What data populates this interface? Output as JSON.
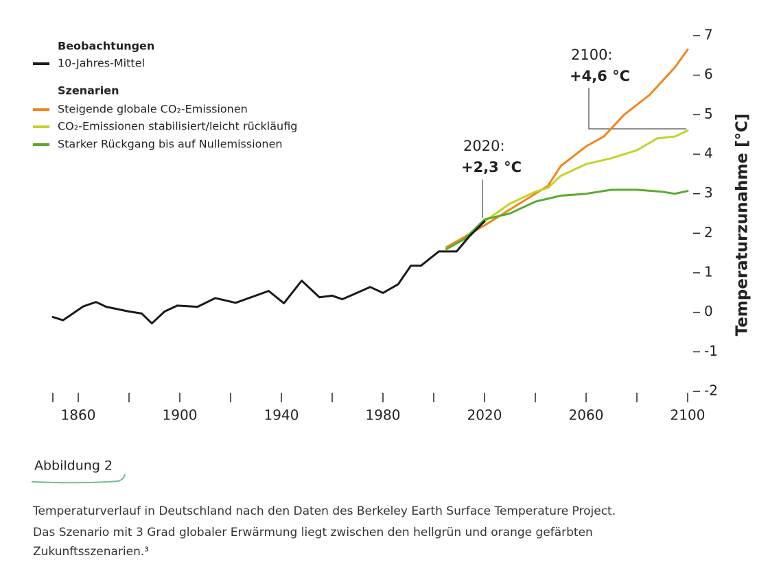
{
  "chart_data": {
    "type": "line",
    "legend_groups": [
      "Beobachtungen",
      "Szenarien"
    ],
    "series": [
      {
        "name": "10-Jahres-Mittel",
        "color": "#1a1a1a",
        "x": [
          1850,
          1854,
          1862,
          1867,
          1871,
          1880,
          1885,
          1889,
          1894,
          1899,
          1907,
          1914,
          1922,
          1935,
          1941,
          1948,
          1955,
          1960,
          1964,
          1975,
          1980,
          1986,
          1991,
          1995,
          2002,
          2009,
          2014,
          2020
        ],
        "values": [
          -0.12,
          -0.2,
          0.15,
          0.26,
          0.14,
          0.02,
          -0.03,
          -0.28,
          0.02,
          0.17,
          0.14,
          0.36,
          0.24,
          0.54,
          0.23,
          0.8,
          0.38,
          0.42,
          0.33,
          0.64,
          0.49,
          0.71,
          1.18,
          1.18,
          1.54,
          1.54,
          1.92,
          2.3
        ]
      },
      {
        "name": "Steigende globale CO₂-Emissionen",
        "color": "#f0861e",
        "x": [
          2005,
          2012,
          2020,
          2030,
          2040,
          2045,
          2050,
          2060,
          2067,
          2075,
          2085,
          2095,
          2100
        ],
        "values": [
          1.65,
          1.9,
          2.2,
          2.6,
          3.0,
          3.2,
          3.7,
          4.2,
          4.45,
          5.0,
          5.5,
          6.2,
          6.65
        ]
      },
      {
        "name": "CO₂-Emissionen stabilisiert/leicht rückläufig",
        "color": "#c3d32a",
        "x": [
          2005,
          2012,
          2020,
          2030,
          2040,
          2045,
          2050,
          2060,
          2070,
          2080,
          2088,
          2095,
          2100
        ],
        "values": [
          1.6,
          1.85,
          2.3,
          2.75,
          3.05,
          3.15,
          3.45,
          3.75,
          3.9,
          4.1,
          4.4,
          4.45,
          4.6
        ]
      },
      {
        "name": "Starker Rückgang bis auf Nullemissionen",
        "color": "#5aaa2e",
        "x": [
          2005,
          2012,
          2020,
          2030,
          2040,
          2050,
          2060,
          2070,
          2080,
          2090,
          2095,
          2100
        ],
        "values": [
          1.6,
          1.85,
          2.35,
          2.5,
          2.8,
          2.95,
          3.0,
          3.1,
          3.1,
          3.05,
          3.0,
          3.07
        ]
      }
    ],
    "legend_groups_index": [
      0,
      1,
      1,
      1
    ],
    "xlim": [
      1850,
      2100
    ],
    "xticks": [
      1860,
      1900,
      1940,
      1980,
      2020,
      2060,
      2100
    ],
    "xminor": [
      1850,
      1880,
      1920,
      1960,
      2000,
      2040,
      2080
    ],
    "ylim": [
      -2,
      7
    ],
    "yticks": [
      -2,
      -1,
      0,
      1,
      2,
      3,
      4,
      5,
      6,
      7
    ],
    "ylabel": "Temperaturzunahme [°C]",
    "annotations": [
      {
        "label": "2020:",
        "value_text": "+2,3 °C"
      },
      {
        "label": "2100:",
        "value_text": "+4,6 °C"
      }
    ]
  },
  "figure_label": "Abbildung 2",
  "caption": [
    "Temperaturverlauf in Deutschland nach den Daten des Berkeley Earth Surface Temperature Project.",
    "Das Szenario mit 3 Grad globaler Erwärmung liegt zwischen den hellgrün und orange gefärbten",
    "Zukunftsszenarien.³"
  ]
}
